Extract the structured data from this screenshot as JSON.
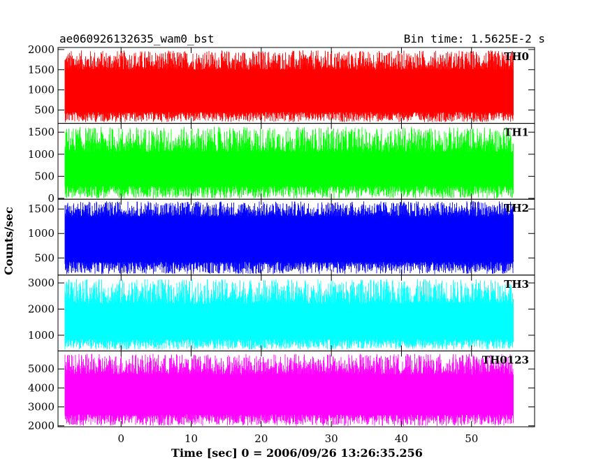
{
  "title_left": "ae060926132635_wam0_bst",
  "title_right": "Bin time: 1.5625E-2 s",
  "ylabel": "Counts/sec",
  "xlabel": "Time [sec] 0 = 2006/09/26 13:26:35.256",
  "chart_data": [
    {
      "type": "line",
      "name": "TH0",
      "color": "#ff0000",
      "xlim": [
        -9,
        59
      ],
      "ylim": [
        170,
        2050
      ],
      "yticks": [
        500,
        1000,
        1500,
        2000
      ],
      "band": {
        "x_start": -8,
        "x_end": 56,
        "floor_min": 200,
        "floor_max": 450,
        "ceil_min": 1500,
        "ceil_max": 1980
      }
    },
    {
      "type": "line",
      "name": "TH1",
      "color": "#00ff00",
      "xlim": [
        -9,
        59
      ],
      "ylim": [
        -20,
        1700
      ],
      "yticks": [
        0,
        500,
        1000,
        1500
      ],
      "band": {
        "x_start": -8,
        "x_end": 56,
        "floor_min": 0,
        "floor_max": 280,
        "ceil_min": 1050,
        "ceil_max": 1620
      }
    },
    {
      "type": "line",
      "name": "TH2",
      "color": "#0000ff",
      "xlim": [
        -9,
        59
      ],
      "ylim": [
        150,
        1700
      ],
      "yticks": [
        500,
        1000,
        1500
      ],
      "band": {
        "x_start": -8,
        "x_end": 56,
        "floor_min": 170,
        "floor_max": 420,
        "ceil_min": 1350,
        "ceil_max": 1660
      }
    },
    {
      "type": "line",
      "name": "TH3",
      "color": "#00ffff",
      "xlim": [
        -9,
        59
      ],
      "ylim": [
        400,
        3300
      ],
      "yticks": [
        1000,
        2000,
        3000
      ],
      "band": {
        "x_start": -8,
        "x_end": 56,
        "floor_min": 450,
        "floor_max": 850,
        "ceil_min": 2200,
        "ceil_max": 3150
      }
    },
    {
      "type": "line",
      "name": "TH0123",
      "color": "#ff00ff",
      "xlim": [
        -9,
        59
      ],
      "ylim": [
        1950,
        5950
      ],
      "yticks": [
        2000,
        3000,
        4000,
        5000
      ],
      "band": {
        "x_start": -8,
        "x_end": 56,
        "floor_min": 2000,
        "floor_max": 2600,
        "ceil_min": 4700,
        "ceil_max": 5800
      }
    }
  ],
  "xticks": [
    0,
    10,
    20,
    30,
    40,
    50
  ]
}
